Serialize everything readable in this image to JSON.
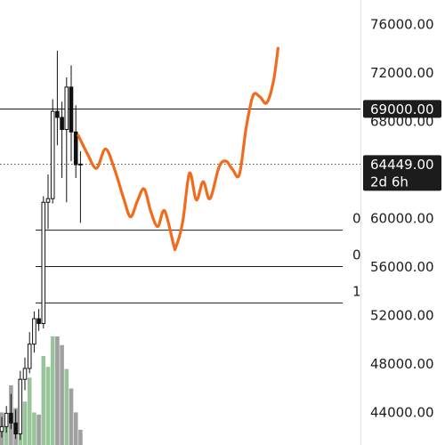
{
  "chart_data": {
    "type": "candlestick",
    "title": "",
    "xlabel": "",
    "ylabel": "",
    "ylim": [
      42000,
      78000
    ],
    "y_ticks": [
      "76000.00",
      "72000.00",
      "68000.00",
      "60000.00",
      "56000.00",
      "52000.00",
      "48000.00",
      "44000.00"
    ],
    "grid": false,
    "horizontal_levels": [
      {
        "price": 69000,
        "label": "69000.00",
        "style": "solid",
        "color": "#1c1c1c"
      },
      {
        "price": 64449,
        "label": "64449.00",
        "style": "dotted",
        "color": "#555555",
        "sublabel": "2d 6h"
      }
    ],
    "marked_levels": [
      {
        "price": 59000,
        "label": "0"
      },
      {
        "price": 56000,
        "label": "0"
      },
      {
        "price": 53000,
        "label": "1"
      }
    ],
    "candles": [
      {
        "o": 42400,
        "h": 43600,
        "l": 41900,
        "c": 42800
      },
      {
        "o": 42800,
        "h": 44500,
        "l": 42300,
        "c": 43900
      },
      {
        "o": 43900,
        "h": 45500,
        "l": 42600,
        "c": 43100
      },
      {
        "o": 43100,
        "h": 44200,
        "l": 41800,
        "c": 42200
      },
      {
        "o": 42200,
        "h": 47400,
        "l": 41700,
        "c": 46700
      },
      {
        "o": 46700,
        "h": 48500,
        "l": 45800,
        "c": 47600
      },
      {
        "o": 47600,
        "h": 50600,
        "l": 47200,
        "c": 49600
      },
      {
        "o": 49600,
        "h": 52300,
        "l": 48900,
        "c": 51700
      },
      {
        "o": 51700,
        "h": 52500,
        "l": 50700,
        "c": 51300
      },
      {
        "o": 51300,
        "h": 61800,
        "l": 50900,
        "c": 61300
      },
      {
        "o": 61300,
        "h": 63600,
        "l": 59100,
        "c": 61600
      },
      {
        "o": 61600,
        "h": 69800,
        "l": 61200,
        "c": 68800
      },
      {
        "o": 68800,
        "h": 73800,
        "l": 66000,
        "c": 68300
      },
      {
        "o": 68300,
        "h": 69600,
        "l": 63300,
        "c": 67300
      },
      {
        "o": 67300,
        "h": 71600,
        "l": 61300,
        "c": 70800
      },
      {
        "o": 70800,
        "h": 72600,
        "l": 64700,
        "c": 67100
      },
      {
        "o": 67100,
        "h": 69300,
        "l": 63300,
        "c": 64400
      },
      {
        "o": 64400,
        "h": 65500,
        "l": 59600,
        "c": 64449
      }
    ],
    "volume": {
      "ymax": 100,
      "series": [
        {
          "values": [
            30,
            18,
            55,
            34,
            22,
            40,
            62,
            30,
            28,
            82,
            72,
            100,
            100,
            92,
            70,
            52,
            30,
            14
          ],
          "colors": [
            "#a0a0a0",
            "#98c49a",
            "#a0a0a0",
            "#a0a0a0",
            "#98c49a",
            "#98c49a",
            "#98c49a",
            "#98c49a",
            "#a0a0a0",
            "#98c49a",
            "#98c49a",
            "#98c49a",
            "#a0a0a0",
            "#a0a0a0",
            "#98c49a",
            "#a0a0a0",
            "#a0a0a0",
            "#a0a0a0"
          ]
        }
      ]
    },
    "projection": {
      "color": "#f26b1d",
      "points": [
        [
          0,
          66800
        ],
        [
          2,
          65300
        ],
        [
          4,
          64100
        ],
        [
          6,
          65700
        ],
        [
          8,
          64000
        ],
        [
          10,
          61600
        ],
        [
          11.5,
          60100
        ],
        [
          13,
          61400
        ],
        [
          14.5,
          62400
        ],
        [
          16,
          60500
        ],
        [
          17.5,
          59300
        ],
        [
          19,
          60600
        ],
        [
          21,
          57800
        ],
        [
          21.5,
          57600
        ],
        [
          23,
          59700
        ],
        [
          24.5,
          63700
        ],
        [
          26,
          61500
        ],
        [
          27.5,
          63000
        ],
        [
          29,
          61600
        ],
        [
          31,
          64200
        ],
        [
          32.5,
          64700
        ],
        [
          34,
          64000
        ],
        [
          35.5,
          63600
        ],
        [
          37,
          67500
        ],
        [
          38.5,
          70100
        ],
        [
          40,
          70000
        ],
        [
          41.5,
          69500
        ],
        [
          43,
          71300
        ],
        [
          44,
          74000
        ]
      ]
    },
    "colors": {
      "axis_text": "#1c1c1c",
      "tag_bg": "#1c1c1c",
      "projection": "#f26b1d"
    }
  }
}
